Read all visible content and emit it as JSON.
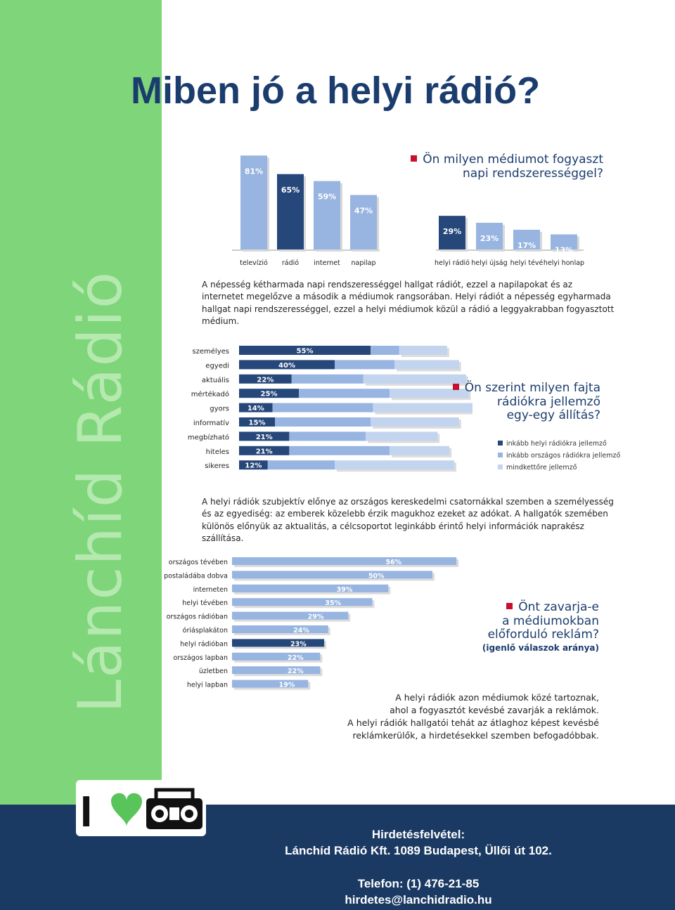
{
  "brand": {
    "vertical_text": "Lánchíd Rádió",
    "green": "#7fd67a",
    "navy": "#1b3a63",
    "dark_bar": "#26477a",
    "light_bar": "#97b5e0",
    "lighter_bar": "#c3d4ee",
    "bullet_red": "#c8102e"
  },
  "page": {
    "title": "Miben jó a helyi rádió?"
  },
  "section1": {
    "question_line1": "Ön milyen médiumot fogyaszt",
    "question_line2": "napi rendszerességgel?",
    "paragraph": "A népesség kétharmada napi rendszerességgel hallgat rádiót, ezzel a napilapokat és az internetet megelőzve a második a médiumok rangsorában. Helyi rádiót a népesség egyharmada hallgat napi rendszerességgel, ezzel a helyi médiumok közül a rádió a leggyakrabban fogyasztott médium."
  },
  "section2": {
    "question_line1": "Ön szerint milyen fajta",
    "question_line2": "rádiókra jellemző",
    "question_line3": "egy-egy állítás?",
    "paragraph": "A helyi rádiók szubjektív előnye az országos kereskedelmi csatornákkal szemben a személyesség és az egyediség: az emberek közelebb érzik magukhoz ezeket az adókat. A hallgatók szemében különös előnyük az aktualitás, a célcsoportot leginkább érintő helyi információk naprakész szállítása."
  },
  "section3": {
    "question_line1": "Önt zavarja-e",
    "question_line2": "a médiumokban",
    "question_line3": "előforduló reklám?",
    "question_note": "(igenlő válaszok aránya)",
    "para_line1": "A helyi rádiók azon médiumok közé tartoznak,",
    "para_line2": "ahol a fogyasztót kevésbé zavarják a reklámok.",
    "para_line3": "A helyi rádiók hallgatói tehát az átlaghoz képest kevésbé",
    "para_line4": "reklámkerülők, a hirdetésekkel szemben befogadóbbak."
  },
  "footer": {
    "line1": "Hirdetésfelvétel:",
    "line2": "Lánchíd Rádió Kft. 1089 Budapest, Üllői út 102.",
    "line3": "Telefon: (1) 476-21-85",
    "line4": "hirdetes@lanchidradio.hu",
    "logo_letter": "I",
    "logo_icons": [
      "heart-icon",
      "boombox-icon"
    ]
  },
  "chart_data": [
    {
      "type": "bar",
      "categories": [
        "televízió",
        "rádió",
        "internet",
        "napilap"
      ],
      "values": [
        81,
        65,
        59,
        47
      ],
      "data_labels": [
        "81%",
        "65%",
        "59%",
        "47%"
      ],
      "highlight": "rádió",
      "ylim": [
        0,
        100
      ]
    },
    {
      "type": "bar",
      "categories": [
        "helyi rádió",
        "helyi újság",
        "helyi tévé",
        "helyi honlap"
      ],
      "values": [
        29,
        23,
        17,
        13
      ],
      "data_labels": [
        "29%",
        "23%",
        "17%",
        "13%"
      ],
      "highlight": "helyi rádió",
      "ylim": [
        0,
        100
      ]
    },
    {
      "type": "bar",
      "orientation": "horizontal",
      "stacked": true,
      "categories": [
        "személyes",
        "egyedi",
        "aktuális",
        "mértékadó",
        "gyors",
        "informatív",
        "megbízható",
        "hiteles",
        "sikeres"
      ],
      "series": [
        {
          "name": "inkább helyi rádiókra jellemző",
          "values": [
            55,
            40,
            22,
            25,
            14,
            15,
            21,
            21,
            12
          ]
        },
        {
          "name": "inkább országos rádiókra jellemző",
          "values": [
            12,
            25,
            30,
            38,
            42,
            40,
            32,
            42,
            28
          ]
        },
        {
          "name": "mindkettőre jellemző",
          "values": [
            20,
            27,
            43,
            33,
            52,
            37,
            30,
            25,
            50
          ]
        }
      ],
      "data_labels": [
        "55%",
        "40%",
        "22%",
        "25%",
        "14%",
        "15%",
        "21%",
        "21%",
        "12%"
      ],
      "legend": "right"
    },
    {
      "type": "bar",
      "orientation": "horizontal",
      "categories": [
        "országos tévében",
        "postaládába dobva",
        "interneten",
        "helyi tévében",
        "országos rádióban",
        "óriásplakáton",
        "helyi rádióban",
        "országos lapban",
        "üzletben",
        "helyi lapban"
      ],
      "values": [
        56,
        50,
        39,
        35,
        29,
        24,
        23,
        22,
        22,
        19
      ],
      "data_labels": [
        "56%",
        "50%",
        "39%",
        "35%",
        "29%",
        "24%",
        "23%",
        "22%",
        "22%",
        "19%"
      ],
      "highlight": "helyi rádióban"
    }
  ]
}
